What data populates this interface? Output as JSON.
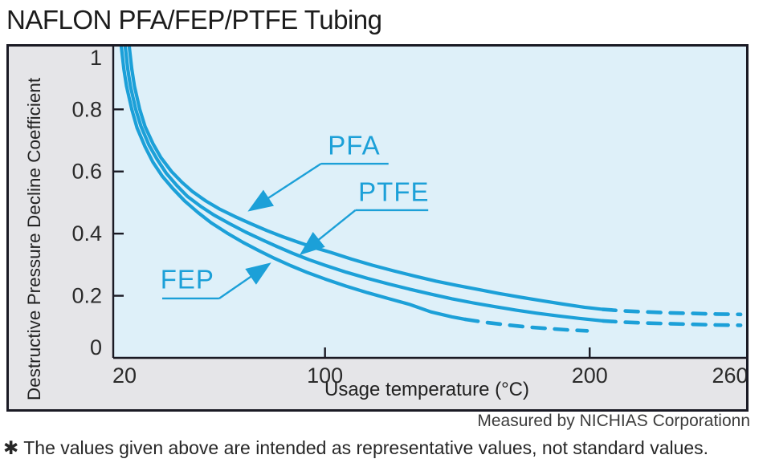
{
  "page": {
    "title": "NAFLON PFA/FEP/PTFE Tubing",
    "credit": "Measured by NICHIAS Corporationn",
    "footnote": "✱ The values given above are intended as representative values, not standard values."
  },
  "colors": {
    "curve": "#1ca0d8",
    "plot_bg": "#def0f9",
    "panel_bg": "#e5e5e8",
    "axis": "#1a1a24",
    "tick_text": "#2b2b2b"
  },
  "chart_data": {
    "type": "line",
    "title": "NAFLON PFA/FEP/PTFE Tubing",
    "xlabel": "Usage temperature (°C)",
    "ylabel": "Destructive Pressure Decline Coefficient",
    "xlim": [
      20,
      260
    ],
    "ylim": [
      0,
      1.01
    ],
    "x_ticks": [
      20,
      100,
      200,
      260
    ],
    "y_ticks": [
      0,
      0.2,
      0.4,
      0.6,
      0.8,
      1
    ],
    "y_tick_labels": [
      "0",
      "0.2",
      "0.4",
      "0.6",
      "0.8",
      "1"
    ],
    "grid": false,
    "legend_position": "inline-annotations",
    "dashed_segment_meaning": "values beyond solid range shown as dashed extrapolation",
    "series": [
      {
        "name": "PFA",
        "solid": [
          [
            26,
            1.005
          ],
          [
            27,
            0.93
          ],
          [
            28,
            0.875
          ],
          [
            30,
            0.8
          ],
          [
            32,
            0.745
          ],
          [
            35,
            0.69
          ],
          [
            38,
            0.645
          ],
          [
            42,
            0.6
          ],
          [
            46,
            0.565
          ],
          [
            50,
            0.535
          ],
          [
            55,
            0.505
          ],
          [
            60,
            0.48
          ],
          [
            66,
            0.455
          ],
          [
            72,
            0.432
          ],
          [
            78,
            0.41
          ],
          [
            84,
            0.39
          ],
          [
            90,
            0.372
          ],
          [
            96,
            0.355
          ],
          [
            102,
            0.34
          ],
          [
            110,
            0.318
          ],
          [
            118,
            0.298
          ],
          [
            126,
            0.28
          ],
          [
            134,
            0.263
          ],
          [
            142,
            0.247
          ],
          [
            150,
            0.233
          ],
          [
            158,
            0.22
          ],
          [
            166,
            0.207
          ],
          [
            174,
            0.195
          ],
          [
            182,
            0.184
          ],
          [
            190,
            0.173
          ],
          [
            198,
            0.163
          ],
          [
            205,
            0.156
          ]
        ],
        "dashed": [
          [
            205,
            0.156
          ],
          [
            213,
            0.151
          ],
          [
            221,
            0.148
          ],
          [
            230,
            0.145
          ],
          [
            239,
            0.143
          ],
          [
            248,
            0.141
          ],
          [
            257,
            0.14
          ]
        ]
      },
      {
        "name": "PTFE",
        "solid": [
          [
            24.5,
            1.005
          ],
          [
            25.5,
            0.93
          ],
          [
            26.5,
            0.875
          ],
          [
            28.5,
            0.8
          ],
          [
            30.5,
            0.745
          ],
          [
            33.5,
            0.685
          ],
          [
            36.5,
            0.64
          ],
          [
            40,
            0.595
          ],
          [
            44,
            0.555
          ],
          [
            48,
            0.52
          ],
          [
            53,
            0.488
          ],
          [
            58,
            0.46
          ],
          [
            64,
            0.432
          ],
          [
            70,
            0.405
          ],
          [
            76,
            0.381
          ],
          [
            82,
            0.358
          ],
          [
            88,
            0.336
          ],
          [
            94,
            0.316
          ],
          [
            100,
            0.298
          ],
          [
            108,
            0.276
          ],
          [
            116,
            0.256
          ],
          [
            124,
            0.238
          ],
          [
            132,
            0.221
          ],
          [
            140,
            0.205
          ],
          [
            148,
            0.19
          ],
          [
            156,
            0.177
          ],
          [
            164,
            0.165
          ],
          [
            172,
            0.154
          ],
          [
            180,
            0.144
          ],
          [
            188,
            0.135
          ],
          [
            196,
            0.127
          ],
          [
            205,
            0.119
          ]
        ],
        "dashed": [
          [
            205,
            0.119
          ],
          [
            213,
            0.115
          ],
          [
            221,
            0.112
          ],
          [
            230,
            0.11
          ],
          [
            239,
            0.108
          ],
          [
            248,
            0.106
          ],
          [
            257,
            0.105
          ]
        ]
      },
      {
        "name": "FEP",
        "solid": [
          [
            23,
            1.005
          ],
          [
            24,
            0.93
          ],
          [
            25,
            0.875
          ],
          [
            27,
            0.8
          ],
          [
            29,
            0.74
          ],
          [
            32,
            0.68
          ],
          [
            35,
            0.63
          ],
          [
            38.5,
            0.585
          ],
          [
            42.5,
            0.545
          ],
          [
            47,
            0.505
          ],
          [
            52,
            0.468
          ],
          [
            57,
            0.435
          ],
          [
            63,
            0.402
          ],
          [
            69,
            0.372
          ],
          [
            75,
            0.345
          ],
          [
            81,
            0.32
          ],
          [
            87,
            0.297
          ],
          [
            93,
            0.276
          ],
          [
            100,
            0.254
          ],
          [
            108,
            0.231
          ],
          [
            116,
            0.21
          ],
          [
            124,
            0.191
          ],
          [
            132,
            0.172
          ],
          [
            140,
            0.148
          ],
          [
            148,
            0.132
          ],
          [
            153,
            0.124
          ]
        ],
        "dashed": [
          [
            153,
            0.124
          ],
          [
            161,
            0.114
          ],
          [
            169,
            0.106
          ],
          [
            177,
            0.099
          ],
          [
            185,
            0.094
          ],
          [
            192,
            0.09
          ],
          [
            199,
            0.087
          ]
        ]
      }
    ],
    "annotations": [
      {
        "label": "PFA",
        "label_at": [
          111,
          0.685
        ],
        "underline": {
          "x1": 98.5,
          "x2": 124,
          "y": 0.625
        },
        "arrow_from": [
          98.5,
          0.625
        ],
        "arrow_to": [
          72,
          0.478
        ]
      },
      {
        "label": "PTFE",
        "label_at": [
          126,
          0.535
        ],
        "underline": {
          "x1": 111.5,
          "x2": 139,
          "y": 0.4755
        },
        "arrow_from": [
          111.5,
          0.4755
        ],
        "arrow_to": [
          91.5,
          0.3385
        ]
      },
      {
        "label": "FEP",
        "label_at": [
          48,
          0.253
        ],
        "underline": {
          "x1": 38.5,
          "x2": 60,
          "y": 0.1912
        },
        "arrow_from": [
          60,
          0.1912
        ],
        "arrow_to": [
          78.5,
          0.2997
        ]
      }
    ]
  }
}
